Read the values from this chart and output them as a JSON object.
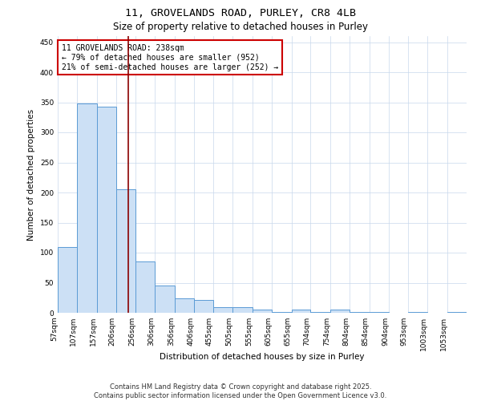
{
  "title_line1": "11, GROVELANDS ROAD, PURLEY, CR8 4LB",
  "title_line2": "Size of property relative to detached houses in Purley",
  "bar_values": [
    110,
    348,
    343,
    205,
    85,
    46,
    24,
    22,
    10,
    9,
    5,
    2,
    6,
    2,
    6,
    2,
    1,
    0,
    1,
    0,
    1
  ],
  "bar_labels": [
    "57sqm",
    "107sqm",
    "157sqm",
    "206sqm",
    "256sqm",
    "306sqm",
    "356sqm",
    "406sqm",
    "455sqm",
    "505sqm",
    "555sqm",
    "605sqm",
    "655sqm",
    "704sqm",
    "754sqm",
    "804sqm",
    "854sqm",
    "904sqm",
    "953sqm",
    "1003sqm",
    "1053sqm"
  ],
  "bin_edges": [
    57,
    107,
    157,
    206,
    256,
    306,
    356,
    406,
    455,
    505,
    555,
    605,
    655,
    704,
    754,
    804,
    854,
    904,
    953,
    1003,
    1053,
    1103
  ],
  "bar_color": "#cce0f5",
  "bar_edge_color": "#5b9bd5",
  "vline_x": 238,
  "vline_color": "#8b0000",
  "ylabel": "Number of detached properties",
  "xlabel": "Distribution of detached houses by size in Purley",
  "ylim": [
    0,
    460
  ],
  "yticks": [
    0,
    50,
    100,
    150,
    200,
    250,
    300,
    350,
    400,
    450
  ],
  "annotation_text": "11 GROVELANDS ROAD: 238sqm\n← 79% of detached houses are smaller (952)\n21% of semi-detached houses are larger (252) →",
  "annotation_box_color": "#ffffff",
  "annotation_box_edge": "#cc0000",
  "footer_line1": "Contains HM Land Registry data © Crown copyright and database right 2025.",
  "footer_line2": "Contains public sector information licensed under the Open Government Licence v3.0.",
  "bg_color": "#ffffff",
  "grid_color": "#c8d8ec",
  "title_fontsize": 9.5,
  "subtitle_fontsize": 8.5,
  "axis_label_fontsize": 7.5,
  "tick_fontsize": 6.5,
  "annotation_fontsize": 7,
  "footer_fontsize": 6
}
